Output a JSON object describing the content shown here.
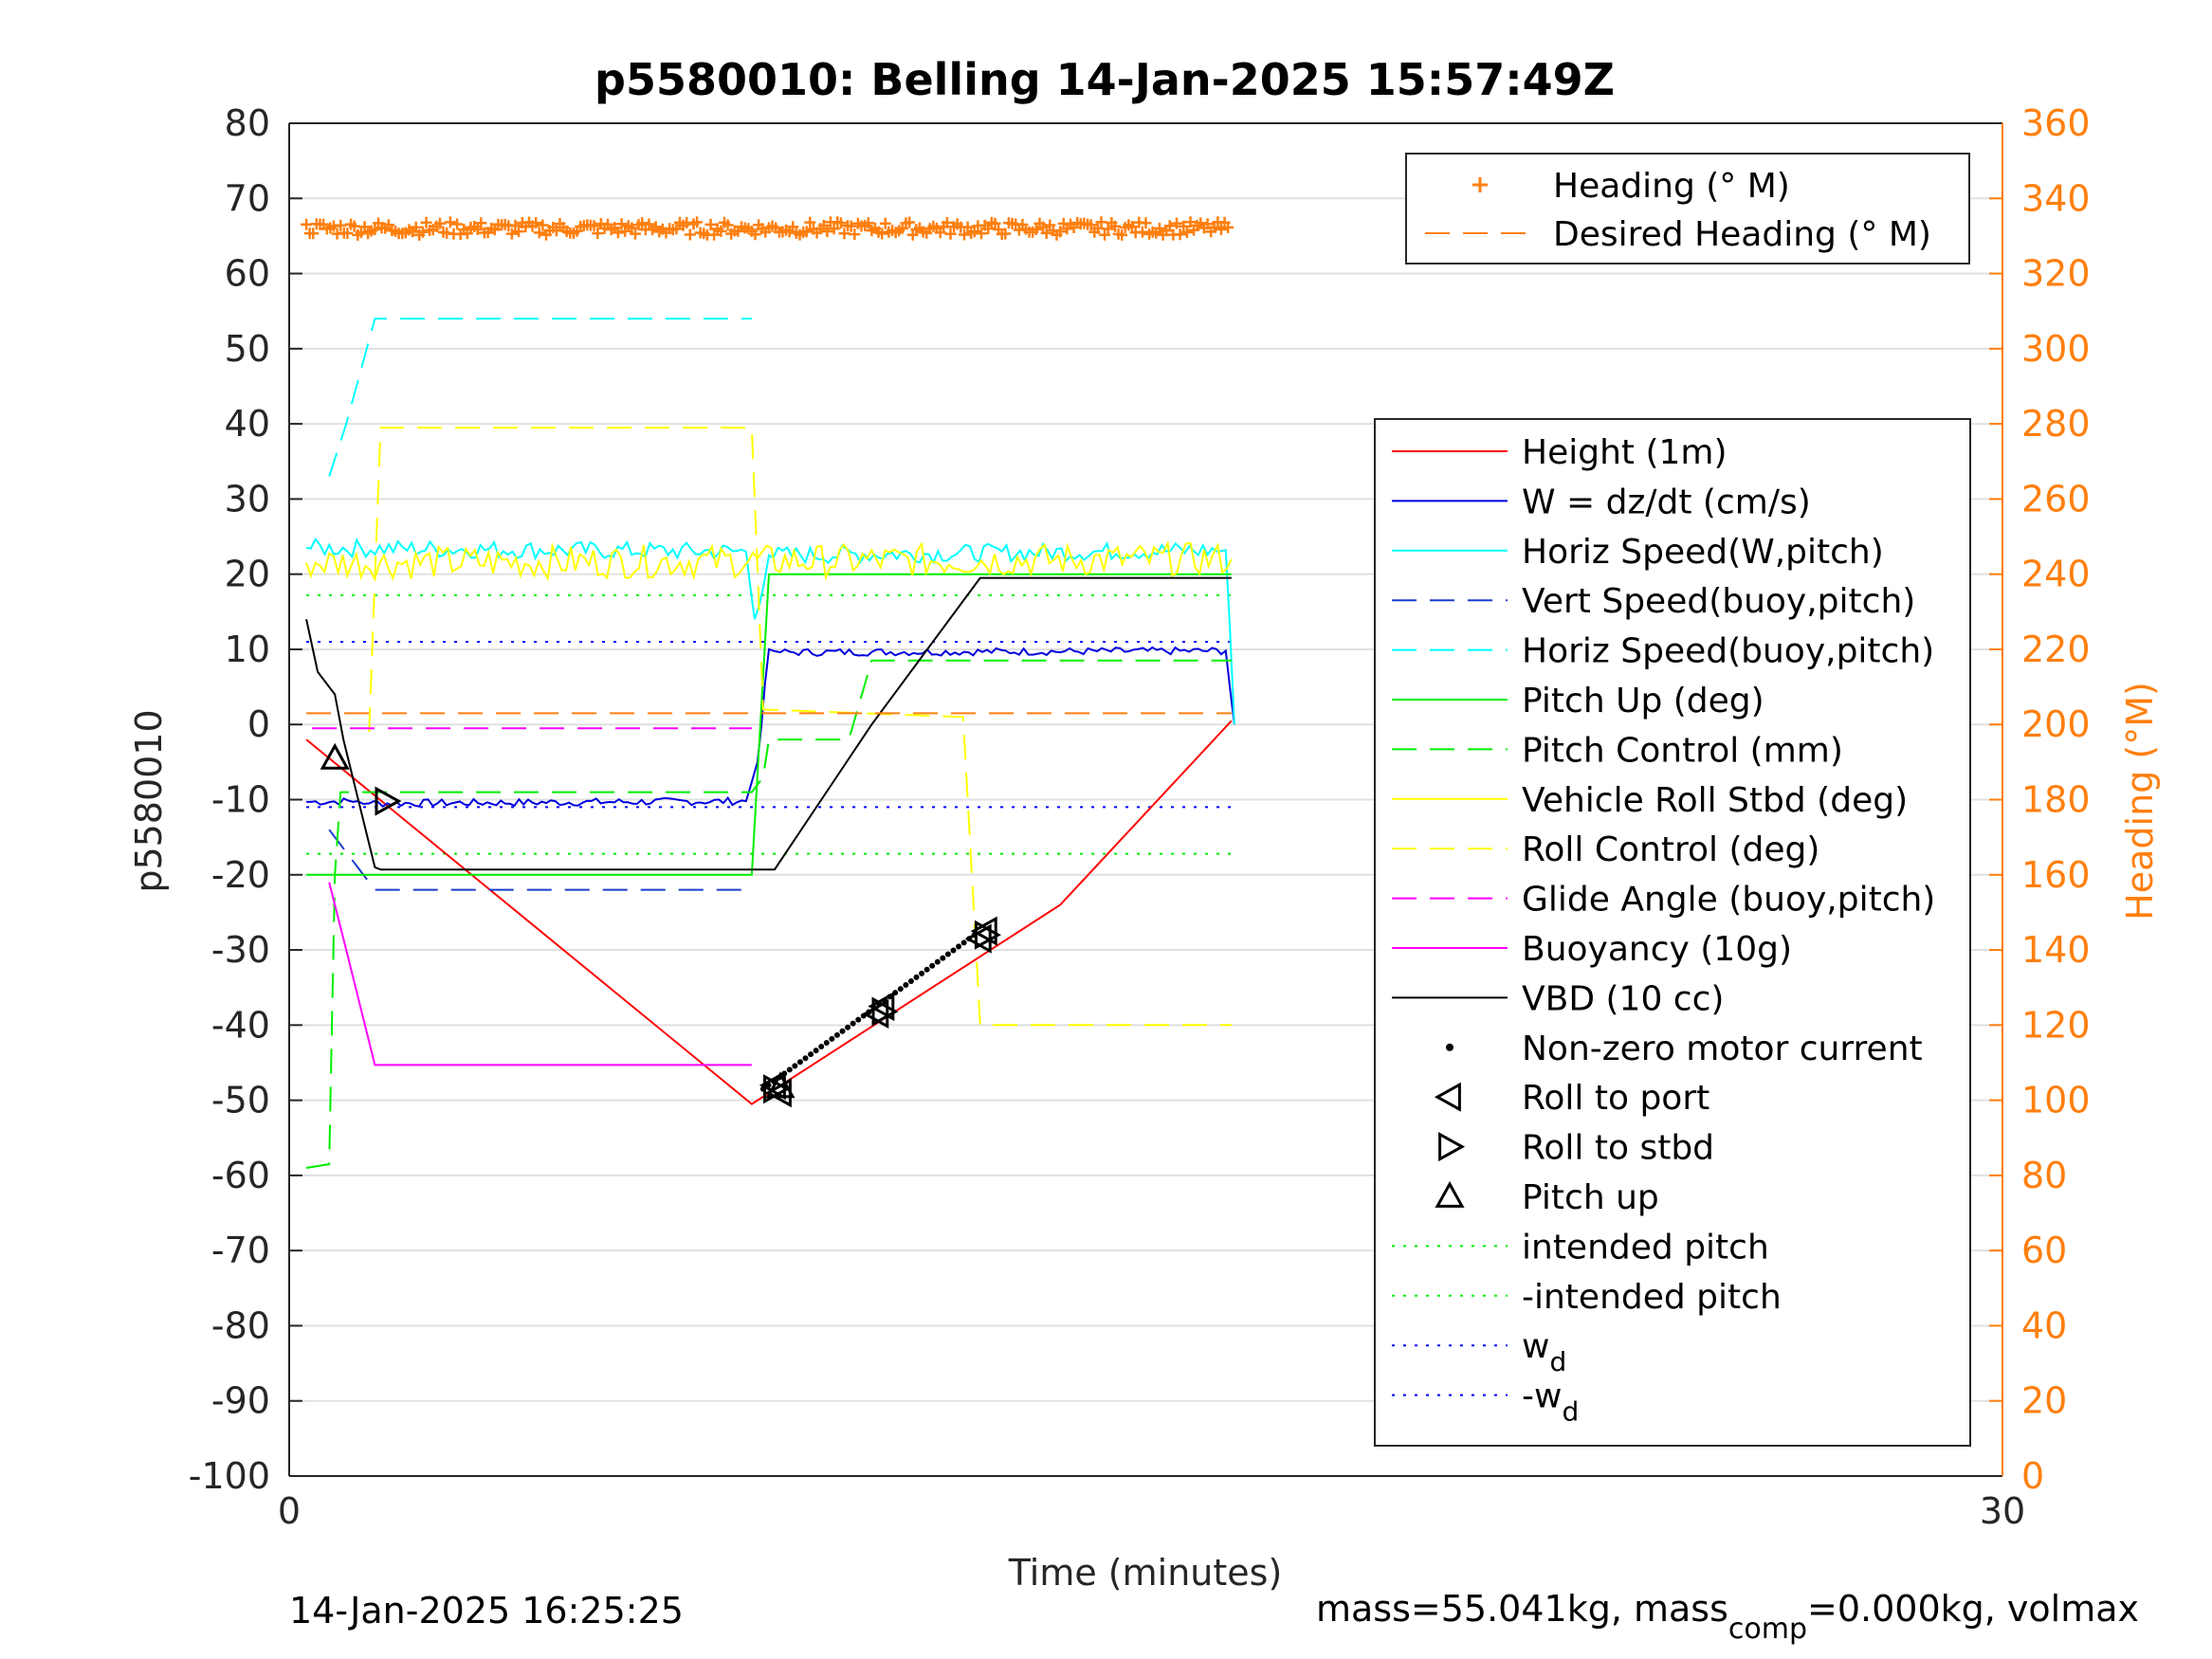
{
  "chart_data": {
    "type": "line",
    "title": "p5580010: Belling 14-Jan-2025 15:57:49Z",
    "xlabel": "Time (minutes)",
    "ylabel": "p5580010",
    "ylabel_right": "Heading (°M)",
    "xlim": [
      0,
      30
    ],
    "ylim": [
      -100,
      80
    ],
    "ylim_right": [
      0,
      360
    ],
    "x_ticks": [
      "0",
      "30"
    ],
    "y_ticks": [
      "80",
      "70",
      "60",
      "50",
      "40",
      "30",
      "20",
      "10",
      "0",
      "-10",
      "-20",
      "-30",
      "-40",
      "-50",
      "-60",
      "-70",
      "-80",
      "-90",
      "-100"
    ],
    "y_ticks_right": [
      "360",
      "340",
      "320",
      "300",
      "280",
      "260",
      "240",
      "220",
      "200",
      "180",
      "160",
      "140",
      "120",
      "100",
      "80",
      "60",
      "40",
      "20",
      "0"
    ],
    "grid": "horizontal",
    "footer_left": "14-Jan-2025 16:25:25",
    "footer_right": {
      "prefix": "mass=55.041kg, mass",
      "sub": "comp",
      "suffix": "=0.000kg, volmax"
    },
    "colors": {
      "height": "#ff0000",
      "w": "#0000dd",
      "horiz_w": "#00ffff",
      "vert_buoy": "#1c3ccf",
      "horiz_buoy": "#00ffff",
      "pitch_up": "#00ee00",
      "pitch_control": "#00ee00",
      "roll": "#ffff00",
      "roll_control": "#ffff00",
      "glide": "#ff00ff",
      "buoyancy": "#ff00ff",
      "vbd": "#000000",
      "heading": "#ff7f0e",
      "intended": "#00ee00",
      "wd": "#0000ff"
    },
    "legend_top": {
      "position": "top-right",
      "entries": [
        {
          "label": "Heading (° M)",
          "style": "plus"
        },
        {
          "label": "Desired Heading (° M)",
          "style": "dash"
        }
      ]
    },
    "legend_main": {
      "position": "right",
      "entries": [
        {
          "label": "Height (1m)",
          "color": "#ff0000",
          "style": "solid"
        },
        {
          "label": "W = dz/dt (cm/s)",
          "color": "#0000dd",
          "style": "solid"
        },
        {
          "label": "Horiz Speed(W,pitch)",
          "color": "#00ffff",
          "style": "solid"
        },
        {
          "label": "Vert Speed(buoy,pitch)",
          "color": "#1c3ccf",
          "style": "dash"
        },
        {
          "label": "Horiz Speed(buoy,pitch)",
          "color": "#00ffff",
          "style": "dash"
        },
        {
          "label": "Pitch Up (deg)",
          "color": "#00ee00",
          "style": "solid"
        },
        {
          "label": "Pitch Control (mm)",
          "color": "#00ee00",
          "style": "dash"
        },
        {
          "label": "Vehicle Roll Stbd (deg)",
          "color": "#ffff00",
          "style": "solid"
        },
        {
          "label": "Roll Control (deg)",
          "color": "#ffff00",
          "style": "dash"
        },
        {
          "label": "Glide Angle (buoy,pitch)",
          "color": "#ff00ff",
          "style": "dash"
        },
        {
          "label": "Buoyancy (10g)",
          "color": "#ff00ff",
          "style": "solid"
        },
        {
          "label": "VBD (10 cc)",
          "color": "#000000",
          "style": "solid"
        },
        {
          "label": "Non-zero motor current",
          "color": "#000000",
          "style": "dot"
        },
        {
          "label": "Roll to port",
          "color": "#000000",
          "style": "tri-left"
        },
        {
          "label": "Roll to stbd",
          "color": "#000000",
          "style": "tri-right"
        },
        {
          "label": "Pitch up",
          "color": "#000000",
          "style": "tri-up"
        },
        {
          "label": "intended pitch",
          "color": "#00ee00",
          "style": "dotted"
        },
        {
          "label": "-intended pitch",
          "color": "#00ee00",
          "style": "dotted"
        },
        {
          "label": "w",
          "sub": "d",
          "color": "#0000ff",
          "style": "dotted"
        },
        {
          "label": "-w",
          "sub": "d",
          "color": "#0000ff",
          "style": "dotted"
        }
      ]
    },
    "series": [
      {
        "name": "Height (1m)",
        "key": "height",
        "points": [
          [
            0.3,
            -2
          ],
          [
            8.1,
            -50.5
          ],
          [
            13.5,
            -24
          ],
          [
            16.5,
            0.5
          ]
        ]
      },
      {
        "name": "W = dz/dt (cm/s)",
        "key": "w",
        "noise": 0.5,
        "points": [
          [
            0.3,
            -10.3
          ],
          [
            1.2,
            -10.2
          ],
          [
            1.4,
            -10.5
          ],
          [
            8.0,
            -10.2
          ],
          [
            8.2,
            -5
          ],
          [
            8.4,
            10
          ],
          [
            8.6,
            9.6
          ],
          [
            16.4,
            9.8
          ],
          [
            16.55,
            0
          ]
        ]
      },
      {
        "name": "Horiz Speed(W,pitch)",
        "key": "horiz_w",
        "noise": 1.2,
        "points": [
          [
            0.3,
            23.5
          ],
          [
            8.0,
            23
          ],
          [
            8.15,
            14
          ],
          [
            8.4,
            22.5
          ],
          [
            16.4,
            23.2
          ],
          [
            16.55,
            0
          ]
        ]
      },
      {
        "name": "Vert Speed(buoy,pitch)",
        "key": "vert_buoy",
        "dash": "26,14",
        "points": [
          [
            0.7,
            -14
          ],
          [
            1.2,
            -19
          ],
          [
            1.5,
            -22
          ],
          [
            8.1,
            -22
          ]
        ]
      },
      {
        "name": "Horiz Speed(buoy,pitch)",
        "key": "horiz_buoy",
        "dash": "26,14",
        "points": [
          [
            0.7,
            33
          ],
          [
            1.0,
            40
          ],
          [
            1.5,
            54
          ],
          [
            8.1,
            54
          ]
        ]
      },
      {
        "name": "Pitch Up (deg)",
        "key": "pitch_up",
        "points": [
          [
            0.3,
            -20
          ],
          [
            8.1,
            -20
          ],
          [
            8.4,
            20
          ],
          [
            16.5,
            20
          ]
        ]
      },
      {
        "name": "Pitch Control (mm)",
        "key": "pitch_control",
        "dash": "26,14",
        "points": [
          [
            0.3,
            -59
          ],
          [
            0.7,
            -58.5
          ],
          [
            0.8,
            -20
          ],
          [
            0.9,
            -9
          ],
          [
            8.1,
            -9
          ],
          [
            8.3,
            -7
          ],
          [
            8.4,
            -2
          ],
          [
            9.8,
            -2
          ],
          [
            10.2,
            8.5
          ],
          [
            16.5,
            8.5
          ]
        ]
      },
      {
        "name": "Vehicle Roll Stbd (deg)",
        "key": "roll",
        "noise": 2.2,
        "points": [
          [
            0.3,
            21.5
          ],
          [
            16.5,
            22
          ]
        ]
      },
      {
        "name": "Roll Control (deg)",
        "key": "roll_control",
        "dash": "26,14",
        "points": [
          [
            1.4,
            -1
          ],
          [
            1.6,
            39.5
          ],
          [
            8.1,
            39.5
          ],
          [
            8.3,
            2
          ],
          [
            11.8,
            1
          ],
          [
            12.1,
            -40
          ],
          [
            16.5,
            -40
          ]
        ]
      },
      {
        "name": "Glide Angle (buoy,pitch)",
        "key": "glide",
        "dash": "26,14",
        "points": [
          [
            0.4,
            -0.5
          ],
          [
            8.1,
            -0.5
          ]
        ]
      },
      {
        "name": "Buoyancy (10g)",
        "key": "buoyancy",
        "points": [
          [
            0.7,
            -21
          ],
          [
            1.0,
            -30
          ],
          [
            1.5,
            -45.3
          ],
          [
            8.1,
            -45.3
          ]
        ]
      },
      {
        "name": "VBD (10 cc)",
        "key": "vbd",
        "points": [
          [
            0.3,
            14
          ],
          [
            0.5,
            7
          ],
          [
            0.8,
            4
          ],
          [
            0.95,
            -2
          ],
          [
            1.5,
            -19
          ],
          [
            1.6,
            -19.3
          ],
          [
            8.5,
            -19.3
          ],
          [
            10.2,
            0
          ],
          [
            12.1,
            19.5
          ],
          [
            16.5,
            19.5
          ]
        ]
      }
    ],
    "reference_lines": [
      {
        "name": "intended pitch",
        "key": "intended",
        "y": 17.2,
        "x": [
          0.3,
          16.5
        ]
      },
      {
        "name": "-intended pitch",
        "key": "intended",
        "y": -17.2,
        "x": [
          0.3,
          16.5
        ]
      },
      {
        "name": "w_d",
        "key": "wd",
        "y": 11,
        "x": [
          0.3,
          16.5
        ]
      },
      {
        "name": "-w_d",
        "key": "wd",
        "y": -11,
        "x": [
          0.3,
          16.5
        ]
      }
    ],
    "heading": {
      "x": [
        0.3,
        16.5
      ],
      "value_deg": 332,
      "desired_deg": 203
    },
    "motor_current": {
      "x": [
        8.3,
        12.0
      ],
      "y": [
        -48.5,
        -28
      ]
    },
    "markers": {
      "roll_port": [
        [
          8.5,
          -48
        ],
        [
          8.6,
          -49
        ],
        [
          10.3,
          -38.5
        ],
        [
          10.4,
          -37.5
        ],
        [
          12.1,
          -28.5
        ],
        [
          12.2,
          -27.5
        ]
      ],
      "roll_stbd": [
        [
          1.7,
          -10.2
        ],
        [
          8.5,
          -48.5
        ],
        [
          10.4,
          -38.2
        ],
        [
          12.2,
          -28
        ]
      ],
      "pitch_up": [
        [
          0.8,
          -4.5
        ],
        [
          8.6,
          -48.2
        ]
      ]
    }
  }
}
